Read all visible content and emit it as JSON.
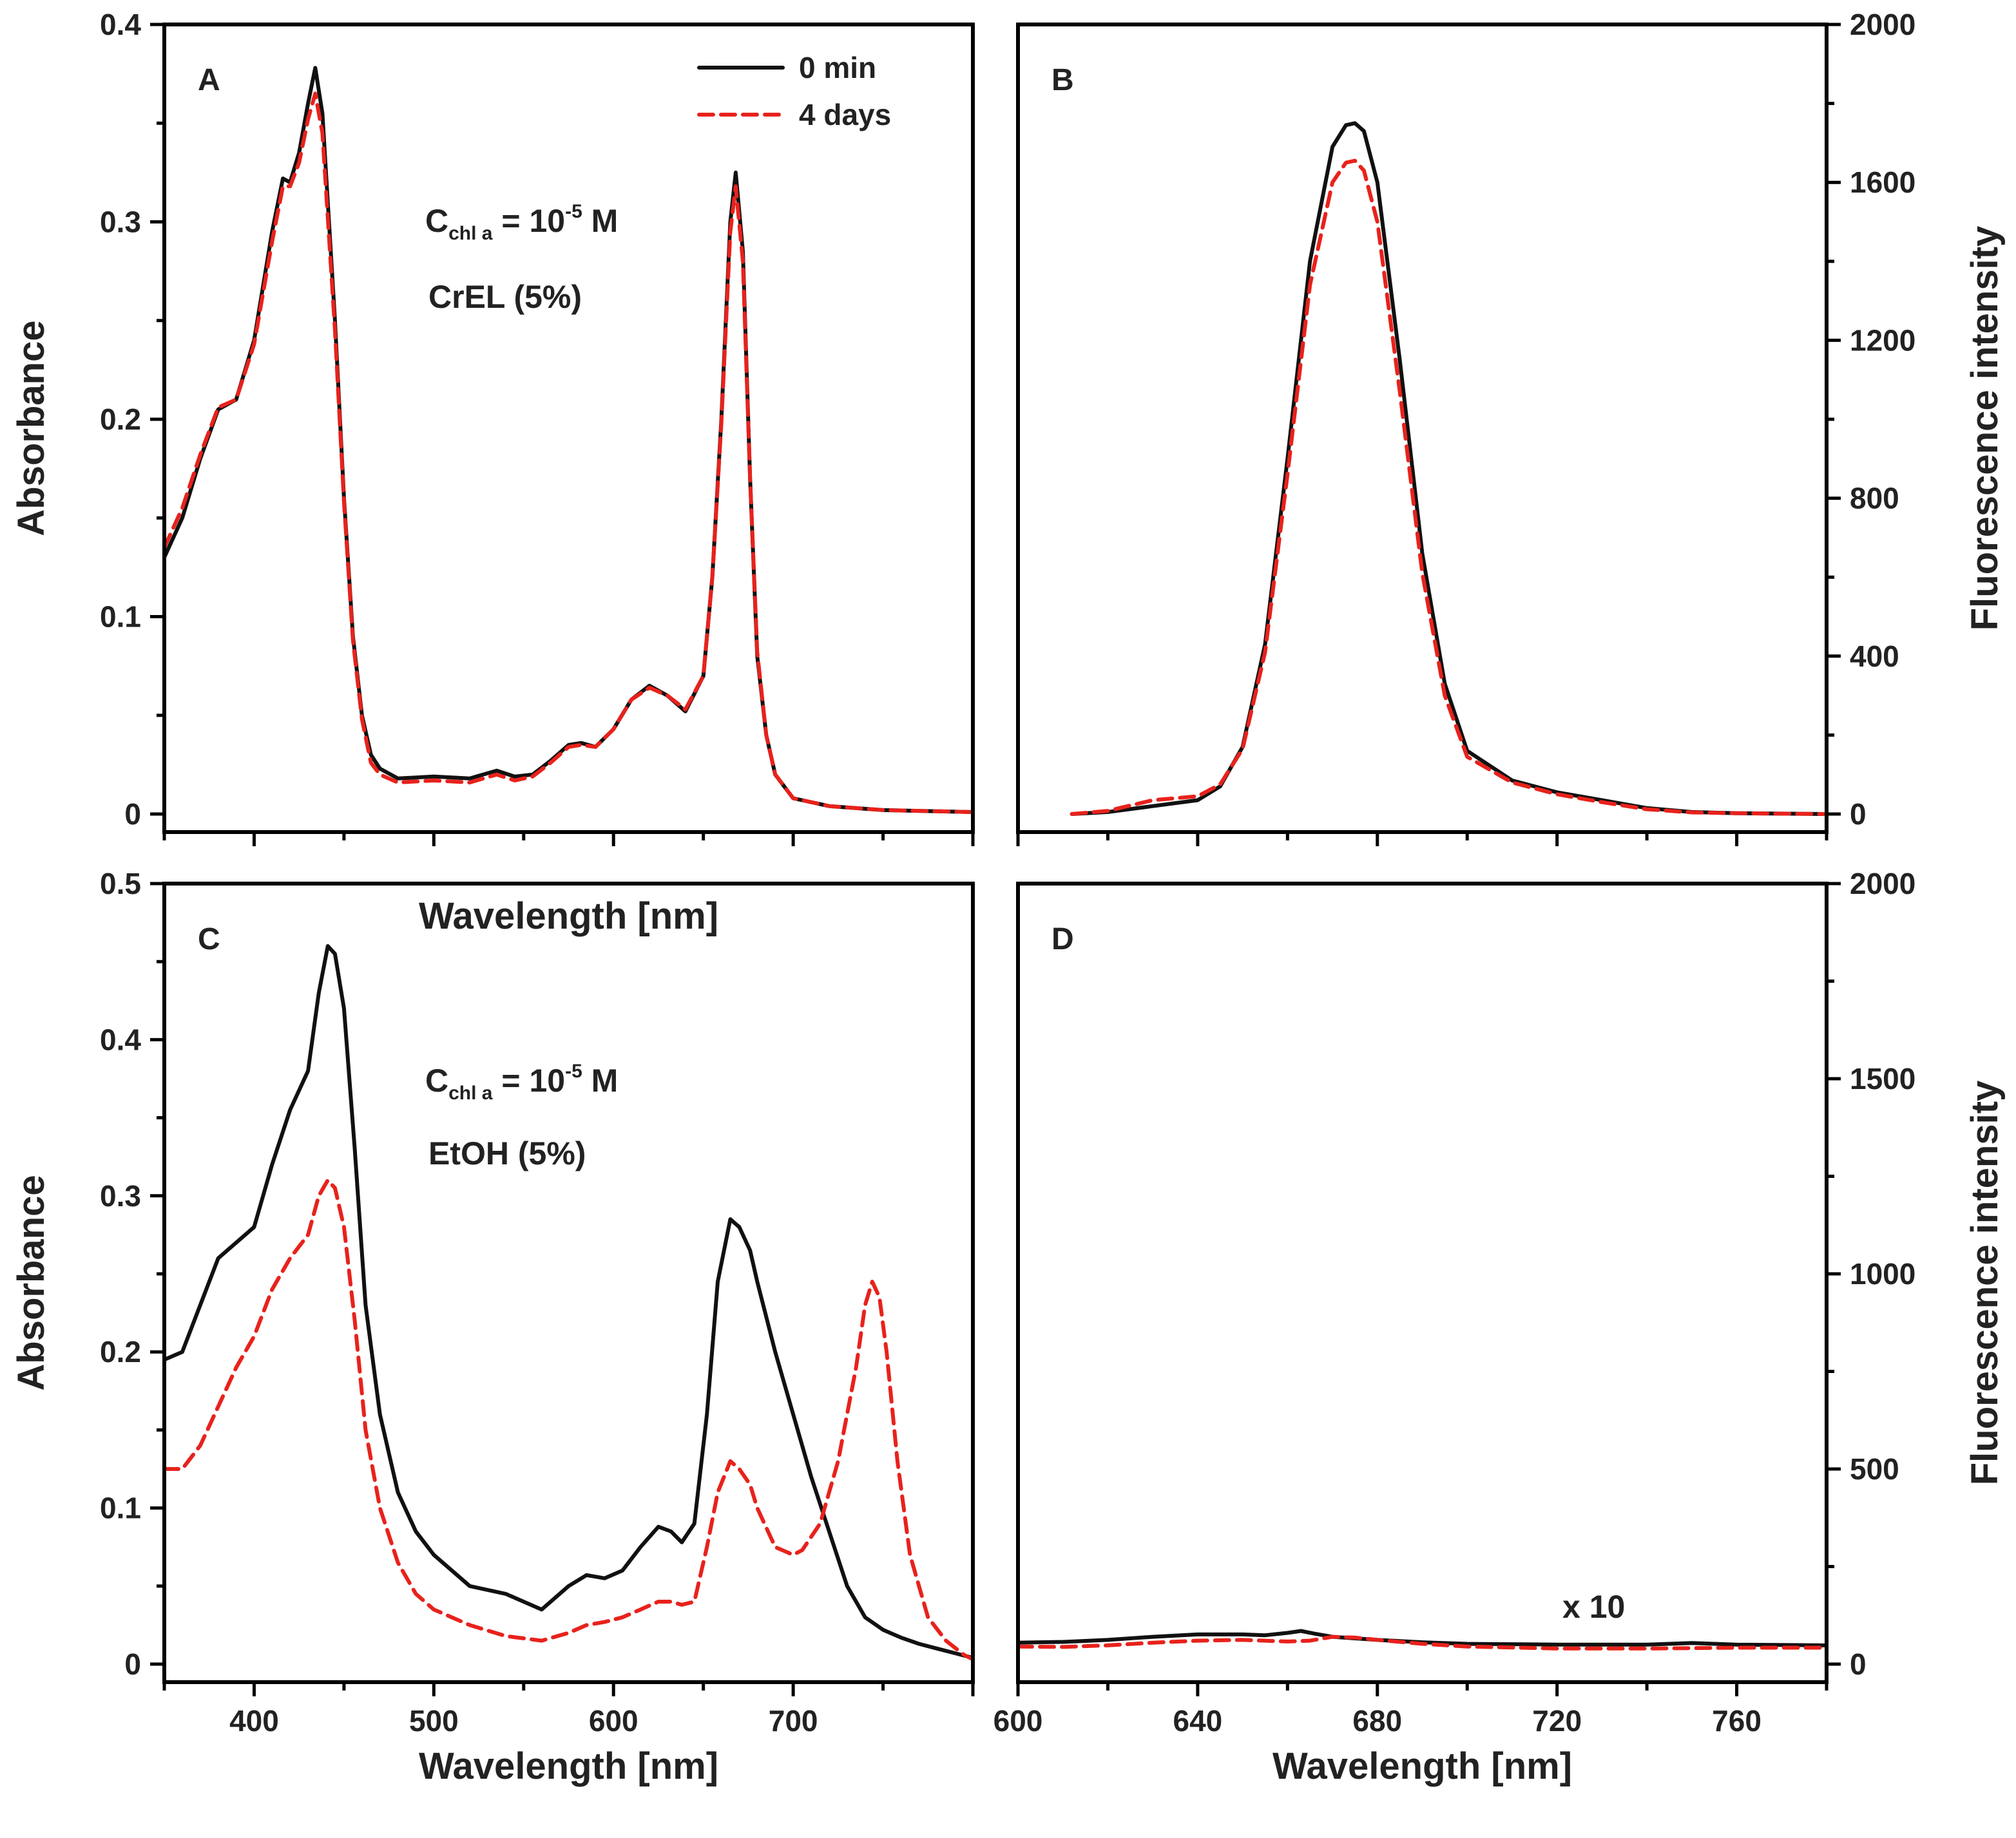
{
  "figure": {
    "colors": {
      "series_0min": "#111111",
      "series_4days": "#e8221c"
    },
    "legend": {
      "items": [
        "0 min",
        "4 days"
      ],
      "position": "top-right of panel A"
    }
  },
  "chart_data": [
    {
      "panel": "A",
      "type": "line",
      "xlabel": "Wavelength [nm]",
      "ylabel": "Absorbance",
      "xlim": [
        350,
        800
      ],
      "ylim": [
        0,
        0.4
      ],
      "xticks": [],
      "yticks": [
        0,
        0.1,
        0.2,
        0.3,
        0.4
      ],
      "ytick_labels": [
        "0",
        "0.1",
        "0.2",
        "0.3",
        "0.4"
      ],
      "annotations": [
        {
          "main": "C",
          "sub": "chl a",
          "rest": " = 10",
          "sup": "-5",
          "tail": " M"
        },
        {
          "text": "CrEL (5%)"
        }
      ],
      "series": [
        {
          "name": "0 min",
          "style": "solid",
          "x": [
            350,
            360,
            370,
            380,
            390,
            400,
            410,
            416,
            420,
            425,
            430,
            434,
            438,
            445,
            450,
            455,
            460,
            465,
            470,
            480,
            500,
            520,
            535,
            545,
            555,
            565,
            575,
            582,
            590,
            600,
            610,
            620,
            630,
            640,
            650,
            655,
            660,
            665,
            668,
            672,
            676,
            680,
            685,
            690,
            700,
            720,
            750,
            800
          ],
          "y": [
            0.13,
            0.15,
            0.18,
            0.205,
            0.21,
            0.24,
            0.295,
            0.322,
            0.32,
            0.335,
            0.36,
            0.378,
            0.355,
            0.25,
            0.16,
            0.09,
            0.05,
            0.03,
            0.023,
            0.018,
            0.019,
            0.018,
            0.022,
            0.019,
            0.02,
            0.027,
            0.035,
            0.036,
            0.034,
            0.043,
            0.058,
            0.065,
            0.06,
            0.052,
            0.07,
            0.12,
            0.2,
            0.3,
            0.325,
            0.285,
            0.17,
            0.08,
            0.04,
            0.02,
            0.008,
            0.004,
            0.002,
            0.001
          ]
        },
        {
          "name": "4 days",
          "style": "dashed",
          "x": [
            350,
            360,
            370,
            380,
            390,
            400,
            410,
            416,
            420,
            425,
            430,
            434,
            438,
            445,
            450,
            455,
            460,
            465,
            470,
            480,
            500,
            520,
            535,
            545,
            555,
            565,
            575,
            582,
            590,
            600,
            610,
            620,
            630,
            640,
            650,
            655,
            660,
            665,
            668,
            672,
            676,
            680,
            685,
            690,
            700,
            720,
            750,
            800
          ],
          "y": [
            0.135,
            0.155,
            0.182,
            0.206,
            0.21,
            0.238,
            0.29,
            0.318,
            0.318,
            0.33,
            0.352,
            0.365,
            0.345,
            0.245,
            0.158,
            0.088,
            0.048,
            0.026,
            0.02,
            0.016,
            0.017,
            0.016,
            0.02,
            0.017,
            0.019,
            0.026,
            0.034,
            0.035,
            0.034,
            0.043,
            0.058,
            0.064,
            0.06,
            0.053,
            0.07,
            0.12,
            0.198,
            0.295,
            0.318,
            0.28,
            0.17,
            0.082,
            0.04,
            0.02,
            0.008,
            0.004,
            0.002,
            0.001
          ]
        }
      ]
    },
    {
      "panel": "B",
      "type": "line",
      "xlabel": "",
      "ylabel": "Fluorescence intensity",
      "xlim": [
        600,
        780
      ],
      "ylim": [
        0,
        2000
      ],
      "xticks": [],
      "yticks": [
        0,
        400,
        800,
        1200,
        1600,
        2000
      ],
      "ytick_labels": [
        "0",
        "400",
        "800",
        "1200",
        "1600",
        "2000"
      ],
      "series": [
        {
          "name": "0 min",
          "style": "solid",
          "x": [
            612,
            620,
            630,
            640,
            645,
            650,
            655,
            660,
            665,
            670,
            673,
            675,
            677,
            680,
            685,
            690,
            695,
            700,
            710,
            720,
            730,
            740,
            750,
            760,
            770,
            780
          ],
          "y": [
            0,
            5,
            20,
            35,
            70,
            170,
            430,
            900,
            1400,
            1690,
            1745,
            1750,
            1730,
            1600,
            1150,
            660,
            330,
            160,
            85,
            55,
            35,
            15,
            5,
            2,
            1,
            0
          ]
        },
        {
          "name": "4 days",
          "style": "dashed",
          "x": [
            612,
            620,
            630,
            640,
            645,
            650,
            655,
            660,
            665,
            670,
            673,
            675,
            677,
            680,
            685,
            690,
            695,
            700,
            710,
            720,
            730,
            740,
            750,
            760,
            770,
            780
          ],
          "y": [
            0,
            8,
            35,
            45,
            75,
            165,
            410,
            860,
            1340,
            1600,
            1650,
            1655,
            1630,
            1500,
            1070,
            610,
            300,
            145,
            80,
            50,
            30,
            12,
            4,
            2,
            1,
            0
          ]
        }
      ]
    },
    {
      "panel": "C",
      "type": "line",
      "xlabel": "Wavelength [nm]",
      "ylabel": "Absorbance",
      "xlim": [
        350,
        800
      ],
      "ylim": [
        0,
        0.5
      ],
      "xticks": [
        400,
        500,
        600,
        700
      ],
      "xtick_labels": [
        "400",
        "500",
        "600",
        "700"
      ],
      "yticks": [
        0,
        0.1,
        0.2,
        0.3,
        0.4,
        0.5
      ],
      "ytick_labels": [
        "0",
        "0.1",
        "0.2",
        "0.3",
        "0.4",
        "0.5"
      ],
      "annotations": [
        {
          "main": "C",
          "sub": "chl a",
          "rest": " = 10",
          "sup": "-5",
          "tail": " M"
        },
        {
          "text": "EtOH (5%)"
        }
      ],
      "series": [
        {
          "name": "0 min",
          "style": "solid",
          "x": [
            350,
            360,
            370,
            380,
            390,
            400,
            410,
            420,
            430,
            436,
            441,
            445,
            450,
            456,
            462,
            470,
            480,
            490,
            500,
            520,
            540,
            560,
            575,
            585,
            595,
            605,
            615,
            625,
            632,
            638,
            645,
            652,
            658,
            665,
            670,
            676,
            680,
            690,
            700,
            710,
            720,
            730,
            740,
            750,
            760,
            770,
            780,
            790,
            800
          ],
          "y": [
            0.195,
            0.2,
            0.23,
            0.26,
            0.27,
            0.28,
            0.32,
            0.355,
            0.38,
            0.43,
            0.46,
            0.455,
            0.42,
            0.33,
            0.23,
            0.16,
            0.11,
            0.085,
            0.07,
            0.05,
            0.045,
            0.035,
            0.05,
            0.057,
            0.055,
            0.06,
            0.075,
            0.088,
            0.085,
            0.078,
            0.09,
            0.16,
            0.245,
            0.285,
            0.28,
            0.265,
            0.245,
            0.2,
            0.16,
            0.12,
            0.085,
            0.05,
            0.03,
            0.022,
            0.017,
            0.013,
            0.01,
            0.007,
            0.004
          ]
        },
        {
          "name": "4 days",
          "style": "dashed",
          "x": [
            350,
            360,
            370,
            380,
            390,
            400,
            410,
            420,
            430,
            436,
            441,
            445,
            450,
            456,
            462,
            470,
            480,
            490,
            500,
            520,
            540,
            560,
            575,
            585,
            595,
            605,
            615,
            625,
            632,
            638,
            645,
            652,
            658,
            665,
            670,
            676,
            680,
            690,
            700,
            705,
            715,
            725,
            735,
            740,
            744,
            748,
            752,
            758,
            765,
            775,
            785,
            795,
            800
          ],
          "y": [
            0.125,
            0.125,
            0.14,
            0.165,
            0.19,
            0.21,
            0.24,
            0.26,
            0.275,
            0.3,
            0.31,
            0.305,
            0.28,
            0.22,
            0.15,
            0.1,
            0.065,
            0.045,
            0.035,
            0.025,
            0.018,
            0.015,
            0.02,
            0.025,
            0.027,
            0.03,
            0.035,
            0.04,
            0.04,
            0.038,
            0.04,
            0.075,
            0.11,
            0.13,
            0.125,
            0.115,
            0.1,
            0.075,
            0.07,
            0.073,
            0.09,
            0.13,
            0.19,
            0.23,
            0.245,
            0.235,
            0.2,
            0.13,
            0.07,
            0.03,
            0.015,
            0.006,
            0.003
          ]
        }
      ]
    },
    {
      "panel": "D",
      "type": "line",
      "xlabel": "Wavelength [nm]",
      "ylabel": "Fluorescence intensity",
      "xlim": [
        600,
        780
      ],
      "ylim": [
        0,
        2000
      ],
      "xticks": [
        600,
        640,
        680,
        720,
        760
      ],
      "xtick_labels": [
        "600",
        "640",
        "680",
        "720",
        "760"
      ],
      "yticks": [
        0,
        500,
        1000,
        1500,
        2000
      ],
      "ytick_labels": [
        "0",
        "500",
        "1000",
        "1500",
        "2000"
      ],
      "annotations": [
        {
          "text": "x 10"
        }
      ],
      "series": [
        {
          "name": "0 min",
          "style": "solid",
          "x": [
            600,
            610,
            620,
            630,
            640,
            650,
            655,
            660,
            663,
            666,
            670,
            680,
            690,
            700,
            720,
            740,
            750,
            760,
            780
          ],
          "y": [
            55,
            57,
            62,
            70,
            76,
            76,
            74,
            80,
            85,
            78,
            70,
            62,
            56,
            52,
            50,
            50,
            54,
            50,
            48
          ]
        },
        {
          "name": "4 days",
          "style": "dashed",
          "x": [
            600,
            610,
            620,
            630,
            640,
            650,
            660,
            665,
            670,
            675,
            680,
            690,
            700,
            720,
            740,
            760,
            780
          ],
          "y": [
            45,
            44,
            48,
            55,
            60,
            62,
            58,
            60,
            70,
            68,
            62,
            52,
            45,
            40,
            40,
            42,
            42
          ]
        }
      ]
    }
  ]
}
